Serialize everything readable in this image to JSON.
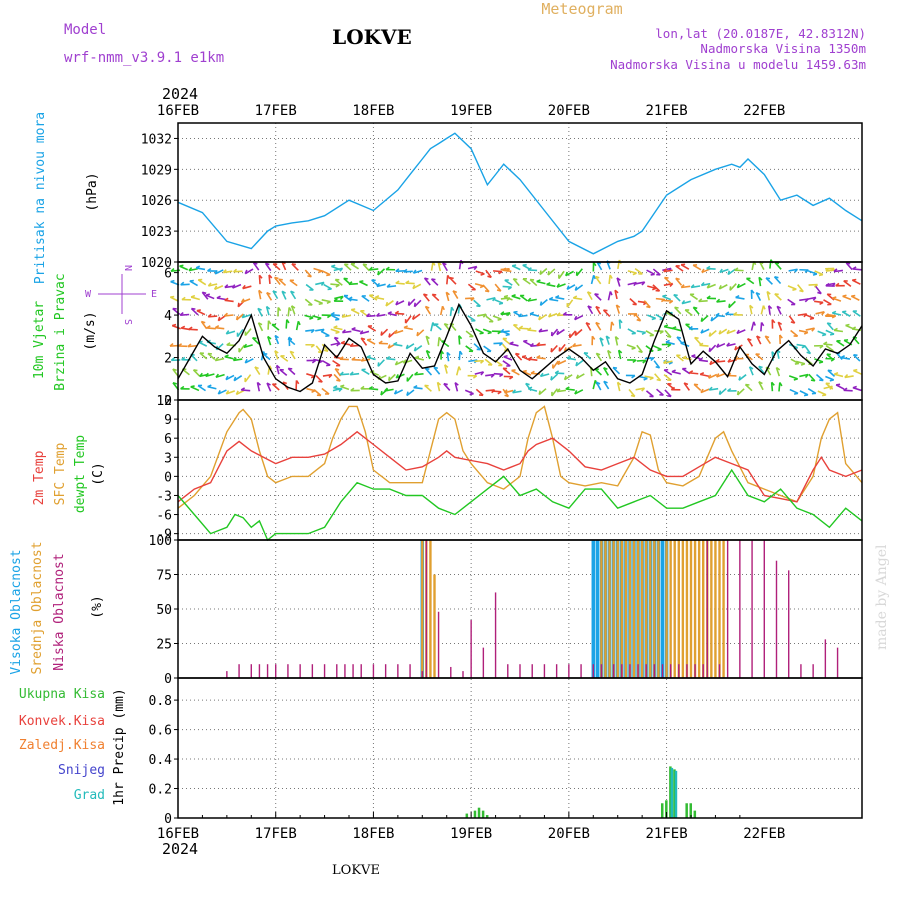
{
  "header": {
    "model_label": "Model",
    "model_name": "wrf-nmm_v3.9.1  e1km",
    "title": "LOKVE",
    "meteogram": "Meteogram",
    "lonlat": "lon,lat (20.0187E, 42.8312N)",
    "altitude": "Nadmorska Visina 1350m",
    "model_altitude": "Nadmorska Visina u modelu 1459.63m",
    "footer_title": "LOKVE",
    "credit": "made by Angel"
  },
  "time_axis": {
    "year": "2024",
    "ticks": [
      "16FEB",
      "17FEB",
      "18FEB",
      "19FEB",
      "20FEB",
      "21FEB",
      "22FEB"
    ]
  },
  "colors": {
    "pressure": "#1aa3e6",
    "t2m": "#e8413c",
    "sfc": "#e0a030",
    "dew": "#22c722",
    "high_cloud": "#1aa3e6",
    "mid_cloud": "#e0a030",
    "low_cloud": "#b0207a",
    "total_precip": "#33bb33",
    "conv_precip": "#e8413c",
    "frozen_precip": "#f08030",
    "snow": "#4444cc",
    "hail": "#22bbbb"
  },
  "panels": {
    "pressure": {
      "label": "Pritisak na nivou mora",
      "unit": "(hPa)",
      "ticks": [
        "1020",
        "1023",
        "1026",
        "1029",
        "1032"
      ]
    },
    "wind": {
      "label1": "10m Vjetar",
      "label2": "Brzina i Pravac",
      "unit": "(m/s)",
      "ticks": [
        "0",
        "2",
        "4",
        "6"
      ],
      "compass_w": "W",
      "compass_e": "E",
      "compass_n": "N",
      "compass_s": "S"
    },
    "temp": {
      "label_t2m": "2m Temp",
      "label_sfc": "SFC Temp",
      "label_dew": "dewpt Temp",
      "unit": "(C)",
      "ticks": [
        "-9",
        "-6",
        "-3",
        "0",
        "3",
        "6",
        "9",
        "12"
      ]
    },
    "cloud": {
      "label_high": "Visoka Oblacnost",
      "label_mid": "Srednja Oblacnost",
      "label_low": "Niska Oblacnost",
      "unit": "(%)",
      "ticks": [
        "0",
        "25",
        "50",
        "75",
        "100"
      ]
    },
    "precip": {
      "legend": [
        "Ukupna Kisa",
        "Konvek.Kisa",
        "Zaledj.Kisa",
        "Snijeg",
        "Grad"
      ],
      "unit": "1hr Precip (mm)",
      "ticks": [
        "0",
        "0.2",
        "0.4",
        "0.6",
        "0.8"
      ]
    }
  },
  "chart_data": [
    {
      "type": "line",
      "title": "Pritisak na nivou mora",
      "ylabel": "(hPa)",
      "ylim": [
        1020,
        1033.5
      ],
      "x_range": [
        "16FEB",
        "22FEB"
      ],
      "x_unit": "hours from 16FEB 00",
      "series": [
        {
          "name": "Pritisak na nivou mora",
          "x": [
            0,
            6,
            12,
            18,
            22,
            24,
            28,
            32,
            36,
            42,
            48,
            54,
            58,
            60,
            62,
            64,
            66,
            68,
            72,
            76,
            78,
            80,
            84,
            90,
            96,
            102,
            108,
            112,
            114,
            120,
            126,
            132,
            136,
            138,
            140,
            144,
            148,
            152,
            156,
            160,
            164,
            168
          ],
          "values": [
            1025.8,
            1024.8,
            1022.0,
            1021.3,
            1023.0,
            1023.5,
            1023.8,
            1024.0,
            1024.5,
            1026.0,
            1025.0,
            1027.0,
            1029.0,
            1030.0,
            1031.0,
            1031.5,
            1032.0,
            1032.5,
            1031.0,
            1027.5,
            1028.5,
            1029.5,
            1028.0,
            1025.0,
            1022.0,
            1020.8,
            1022.0,
            1022.5,
            1023.0,
            1026.5,
            1028.0,
            1029.0,
            1029.5,
            1029.2,
            1030.0,
            1028.5,
            1026.0,
            1026.5,
            1025.5,
            1026.2,
            1025.0,
            1024.0
          ]
        }
      ]
    },
    {
      "type": "line",
      "title": "10m Vjetar Brzina i Pravac",
      "ylabel": "(m/s)",
      "ylim": [
        0,
        6.5
      ],
      "x_unit": "hours from 16FEB 00",
      "series": [
        {
          "name": "10m Vjetar",
          "x": [
            0,
            3,
            6,
            9,
            12,
            15,
            18,
            21,
            24,
            27,
            30,
            33,
            36,
            39,
            42,
            45,
            48,
            51,
            54,
            57,
            60,
            63,
            66,
            69,
            72,
            75,
            78,
            81,
            84,
            87,
            90,
            93,
            96,
            99,
            102,
            105,
            108,
            111,
            114,
            117,
            120,
            123,
            126,
            129,
            132,
            135,
            138,
            141,
            144,
            147,
            150,
            153,
            156,
            159,
            162,
            165,
            168
          ],
          "values": [
            1.0,
            2.0,
            3.0,
            2.5,
            2.2,
            2.8,
            4.0,
            2.0,
            1.0,
            0.6,
            0.4,
            0.8,
            2.6,
            2.0,
            2.9,
            2.5,
            1.2,
            0.8,
            0.9,
            2.2,
            1.5,
            1.6,
            3.0,
            4.5,
            3.5,
            2.2,
            1.8,
            2.4,
            1.4,
            1.0,
            1.5,
            2.0,
            2.4,
            2.0,
            1.4,
            1.8,
            1.0,
            0.8,
            1.2,
            2.8,
            4.2,
            3.8,
            1.7,
            2.3,
            1.8,
            1.1,
            2.5,
            1.7,
            1.2,
            2.3,
            2.8,
            2.1,
            1.6,
            2.4,
            2.2,
            2.6,
            3.5
          ]
        }
      ]
    },
    {
      "type": "line",
      "title": "Temperatura",
      "ylabel": "(C)",
      "ylim": [
        -10,
        12
      ],
      "x_unit": "hours from 16FEB 00",
      "series": [
        {
          "name": "2m Temp",
          "x": [
            0,
            4,
            8,
            12,
            15,
            18,
            21,
            24,
            28,
            32,
            36,
            40,
            42,
            44,
            48,
            52,
            56,
            60,
            64,
            66,
            68,
            72,
            76,
            80,
            84,
            86,
            88,
            92,
            96,
            100,
            104,
            108,
            112,
            116,
            120,
            124,
            128,
            132,
            136,
            140,
            144,
            148,
            152,
            156,
            158,
            160,
            164,
            168
          ],
          "values": [
            -4,
            -2,
            -1,
            4,
            5.5,
            4,
            3,
            2,
            3,
            3,
            3.5,
            5,
            6,
            7,
            5,
            3,
            1,
            1.5,
            3,
            4,
            3,
            2.5,
            2,
            1,
            2,
            4,
            5,
            6,
            4,
            1.5,
            1,
            2,
            3,
            1,
            0,
            0,
            1.5,
            3,
            2,
            1,
            -3,
            -3.5,
            -4,
            1,
            3,
            1,
            0,
            1
          ]
        },
        {
          "name": "SFC Temp",
          "x": [
            0,
            4,
            8,
            12,
            15,
            16,
            18,
            20,
            22,
            24,
            28,
            32,
            36,
            38,
            40,
            42,
            44,
            46,
            48,
            52,
            56,
            60,
            62,
            64,
            66,
            68,
            70,
            72,
            76,
            80,
            84,
            86,
            88,
            90,
            92,
            94,
            96,
            100,
            104,
            108,
            112,
            114,
            116,
            118,
            120,
            124,
            128,
            132,
            134,
            136,
            140,
            144,
            148,
            152,
            156,
            158,
            160,
            162,
            164,
            168
          ],
          "values": [
            -5,
            -3,
            0,
            7,
            10,
            10.5,
            9,
            4,
            0,
            -1,
            0,
            0,
            2,
            6,
            9,
            11,
            11,
            7,
            1,
            -1,
            -1,
            -1,
            4,
            9,
            10,
            9,
            4,
            2,
            -1,
            -2,
            0,
            6,
            10,
            11,
            6,
            0,
            -1,
            -1.5,
            -1,
            -1.5,
            3,
            7,
            6.5,
            1,
            -1,
            -1.5,
            0,
            6,
            7,
            4,
            -1,
            -2,
            -3,
            -4,
            0,
            6,
            9,
            10,
            2,
            -1
          ]
        },
        {
          "name": "dewpt Temp",
          "x": [
            0,
            4,
            8,
            12,
            14,
            16,
            18,
            20,
            22,
            24,
            28,
            32,
            36,
            40,
            44,
            48,
            52,
            56,
            60,
            64,
            68,
            72,
            76,
            80,
            84,
            88,
            92,
            96,
            100,
            104,
            108,
            112,
            116,
            120,
            124,
            128,
            132,
            136,
            140,
            144,
            148,
            152,
            156,
            160,
            164,
            168
          ],
          "values": [
            -3,
            -6,
            -9,
            -8,
            -6,
            -6.5,
            -8,
            -7,
            -10,
            -9,
            -9,
            -9,
            -8,
            -4,
            -1,
            -2,
            -2,
            -3,
            -3,
            -5,
            -6,
            -4,
            -2,
            0,
            -3,
            -2,
            -4,
            -5,
            -2,
            -2,
            -5,
            -4,
            -3,
            -5,
            -5,
            -4,
            -3,
            1,
            -3,
            -4,
            -2,
            -5,
            -6,
            -8,
            -5,
            -7
          ]
        }
      ]
    },
    {
      "type": "bar",
      "title": "Oblacnost",
      "ylabel": "(%)",
      "ylim": [
        0,
        100
      ],
      "x_unit": "hours from 16FEB 00",
      "series": [
        {
          "name": "Visoka Oblacnost",
          "x": [
            60,
            102,
            103,
            104,
            105,
            106,
            107,
            108,
            109,
            110,
            111,
            112,
            113,
            114,
            115,
            116,
            117,
            118,
            119,
            120
          ],
          "values": [
            100,
            100,
            100,
            100,
            100,
            100,
            100,
            100,
            100,
            100,
            100,
            100,
            100,
            100,
            100,
            100,
            100,
            100,
            100,
            100
          ]
        },
        {
          "name": "Srednja Oblacnost",
          "x": [
            60,
            61,
            62,
            63,
            104,
            105,
            106,
            107,
            108,
            109,
            110,
            111,
            112,
            113,
            114,
            115,
            116,
            117,
            118,
            120,
            121,
            122,
            123,
            124,
            125,
            126,
            127,
            128,
            129,
            130,
            131,
            132,
            133,
            134
          ],
          "values": [
            100,
            100,
            100,
            75,
            100,
            100,
            100,
            100,
            100,
            100,
            100,
            100,
            100,
            100,
            100,
            100,
            100,
            100,
            100,
            100,
            100,
            100,
            100,
            100,
            100,
            100,
            100,
            100,
            100,
            100,
            100,
            100,
            100,
            100
          ]
        },
        {
          "name": "Niska Oblacnost",
          "x": [
            12,
            15,
            18,
            20,
            22,
            24,
            27,
            30,
            33,
            36,
            39,
            41,
            43,
            45,
            48,
            51,
            54,
            57,
            60,
            61,
            64,
            67,
            70,
            72,
            75,
            78,
            81,
            84,
            87,
            90,
            93,
            96,
            99,
            102,
            104,
            107,
            109,
            111,
            113,
            115,
            117,
            119,
            121,
            123,
            125,
            127,
            129,
            130,
            133,
            135,
            138,
            141,
            144,
            147,
            150,
            153,
            156,
            159,
            162
          ],
          "values": [
            5,
            10,
            10,
            10,
            10,
            10,
            10,
            10,
            10,
            10,
            10,
            10,
            10,
            10,
            10,
            10,
            10,
            10,
            5,
            100,
            48,
            8,
            5,
            42,
            22,
            62,
            10,
            10,
            10,
            10,
            10,
            10,
            10,
            10,
            10,
            10,
            10,
            10,
            10,
            10,
            10,
            10,
            10,
            10,
            10,
            10,
            10,
            100,
            10,
            100,
            100,
            100,
            100,
            85,
            78,
            10,
            10,
            28,
            22
          ]
        }
      ]
    },
    {
      "type": "bar",
      "title": "1hr Precip",
      "ylabel": "1hr Precip (mm)",
      "ylim": [
        0,
        0.95
      ],
      "x_unit": "hours from 16FEB 00",
      "series": [
        {
          "name": "Ukupna Kisa",
          "x": [
            71,
            73,
            74,
            75,
            76,
            119,
            120,
            121,
            122,
            125,
            126,
            127
          ],
          "values": [
            0.03,
            0.05,
            0.07,
            0.05,
            0.02,
            0.1,
            0.12,
            0.35,
            0.33,
            0.1,
            0.1,
            0.05
          ]
        },
        {
          "name": "Grad",
          "x": [
            121,
            122
          ],
          "values": [
            0.34,
            0.32
          ]
        }
      ]
    }
  ]
}
